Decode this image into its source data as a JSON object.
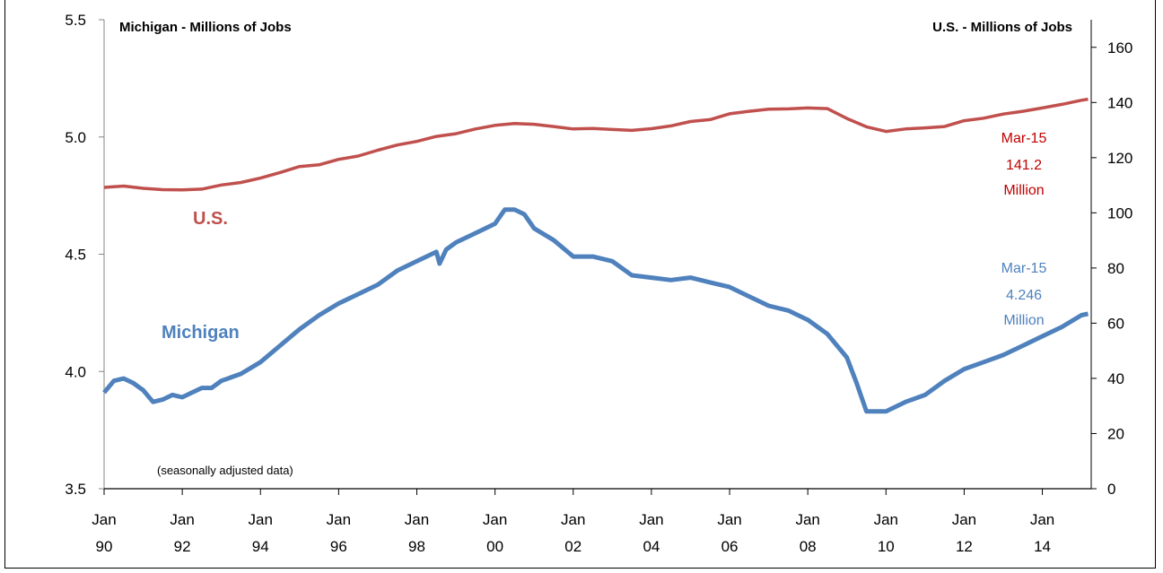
{
  "chart_data": {
    "type": "line",
    "left_axis_title": "Michigan - Millions of Jobs",
    "right_axis_title": "U.S. - Millions of Jobs",
    "note": "(seasonally adjusted data)",
    "left_ylim": [
      3.5,
      5.5
    ],
    "left_yticks": [
      "3.5",
      "4.0",
      "4.5",
      "5.0",
      "5.5"
    ],
    "right_ylim": [
      0,
      170
    ],
    "right_yticks": [
      "0",
      "20",
      "40",
      "60",
      "80",
      "100",
      "120",
      "140",
      "160"
    ],
    "xlim": [
      1990.0,
      2015.25
    ],
    "x_ticks": [
      {
        "top": "Jan",
        "bottom": "90",
        "x": 1990
      },
      {
        "top": "Jan",
        "bottom": "92",
        "x": 1992
      },
      {
        "top": "Jan",
        "bottom": "94",
        "x": 1994
      },
      {
        "top": "Jan",
        "bottom": "96",
        "x": 1996
      },
      {
        "top": "Jan",
        "bottom": "98",
        "x": 1998
      },
      {
        "top": "Jan",
        "bottom": "00",
        "x": 2000
      },
      {
        "top": "Jan",
        "bottom": "02",
        "x": 2002
      },
      {
        "top": "Jan",
        "bottom": "04",
        "x": 2004
      },
      {
        "top": "Jan",
        "bottom": "06",
        "x": 2006
      },
      {
        "top": "Jan",
        "bottom": "08",
        "x": 2008
      },
      {
        "top": "Jan",
        "bottom": "10",
        "x": 2010
      },
      {
        "top": "Jan",
        "bottom": "12",
        "x": 2012
      },
      {
        "top": "Jan",
        "bottom": "14",
        "x": 2014
      }
    ],
    "grid": false,
    "series": [
      {
        "name": "U.S.",
        "axis": "right",
        "color": "#c0504d",
        "x": [
          1990.0,
          1990.5,
          1991.0,
          1991.5,
          1992.0,
          1992.5,
          1993.0,
          1993.5,
          1994.0,
          1994.5,
          1995.0,
          1995.5,
          1996.0,
          1996.5,
          1997.0,
          1997.5,
          1998.0,
          1998.5,
          1999.0,
          1999.5,
          2000.0,
          2000.5,
          2001.0,
          2001.5,
          2002.0,
          2002.5,
          2003.0,
          2003.5,
          2004.0,
          2004.5,
          2005.0,
          2005.5,
          2006.0,
          2006.5,
          2007.0,
          2007.5,
          2008.0,
          2008.5,
          2009.0,
          2009.5,
          2010.0,
          2010.5,
          2011.0,
          2011.5,
          2012.0,
          2012.5,
          2013.0,
          2013.5,
          2014.0,
          2014.5,
          2015.0,
          2015.17
        ],
        "values": [
          109.2,
          109.7,
          108.9,
          108.4,
          108.3,
          108.6,
          110.1,
          111.0,
          112.6,
          114.6,
          116.8,
          117.4,
          119.4,
          120.6,
          122.7,
          124.6,
          125.9,
          127.7,
          128.7,
          130.4,
          131.7,
          132.4,
          132.1,
          131.3,
          130.4,
          130.6,
          130.2,
          129.9,
          130.5,
          131.5,
          133.1,
          133.8,
          135.9,
          136.8,
          137.6,
          137.7,
          138.0,
          137.8,
          134.2,
          131.2,
          129.5,
          130.4,
          130.8,
          131.3,
          133.4,
          134.3,
          135.8,
          136.8,
          138.0,
          139.3,
          140.8,
          141.2
        ]
      },
      {
        "name": "Michigan",
        "axis": "left",
        "color": "#4f81bd",
        "x": [
          1990.0,
          1990.25,
          1990.5,
          1990.75,
          1991.0,
          1991.25,
          1991.5,
          1991.75,
          1992.0,
          1992.25,
          1992.5,
          1992.75,
          1993.0,
          1993.5,
          1994.0,
          1994.5,
          1995.0,
          1995.5,
          1996.0,
          1996.5,
          1997.0,
          1997.5,
          1998.0,
          1998.5,
          1998.58,
          1998.75,
          1999.0,
          1999.5,
          2000.0,
          2000.25,
          2000.5,
          2000.75,
          2001.0,
          2001.5,
          2002.0,
          2002.5,
          2003.0,
          2003.5,
          2004.0,
          2004.5,
          2005.0,
          2005.5,
          2006.0,
          2006.5,
          2007.0,
          2007.5,
          2008.0,
          2008.5,
          2009.0,
          2009.25,
          2009.5,
          2009.75,
          2010.0,
          2010.5,
          2011.0,
          2011.5,
          2012.0,
          2012.5,
          2013.0,
          2013.5,
          2014.0,
          2014.5,
          2015.0,
          2015.17
        ],
        "values": [
          3.91,
          3.96,
          3.97,
          3.95,
          3.92,
          3.87,
          3.88,
          3.9,
          3.89,
          3.91,
          3.93,
          3.93,
          3.96,
          3.99,
          4.04,
          4.11,
          4.18,
          4.24,
          4.29,
          4.33,
          4.37,
          4.43,
          4.47,
          4.51,
          4.46,
          4.52,
          4.55,
          4.59,
          4.63,
          4.69,
          4.69,
          4.67,
          4.61,
          4.56,
          4.49,
          4.49,
          4.47,
          4.41,
          4.4,
          4.39,
          4.4,
          4.38,
          4.36,
          4.32,
          4.28,
          4.26,
          4.22,
          4.16,
          4.06,
          3.95,
          3.83,
          3.83,
          3.83,
          3.87,
          3.9,
          3.96,
          4.01,
          4.04,
          4.07,
          4.11,
          4.15,
          4.19,
          4.24,
          4.246
        ]
      }
    ],
    "series_labels": {
      "us": "U.S.",
      "michigan": "Michigan"
    },
    "annotations": {
      "us": [
        "Mar-15",
        "141.2",
        "Million"
      ],
      "michigan": [
        "Mar-15",
        "4.246",
        "Million"
      ]
    }
  }
}
